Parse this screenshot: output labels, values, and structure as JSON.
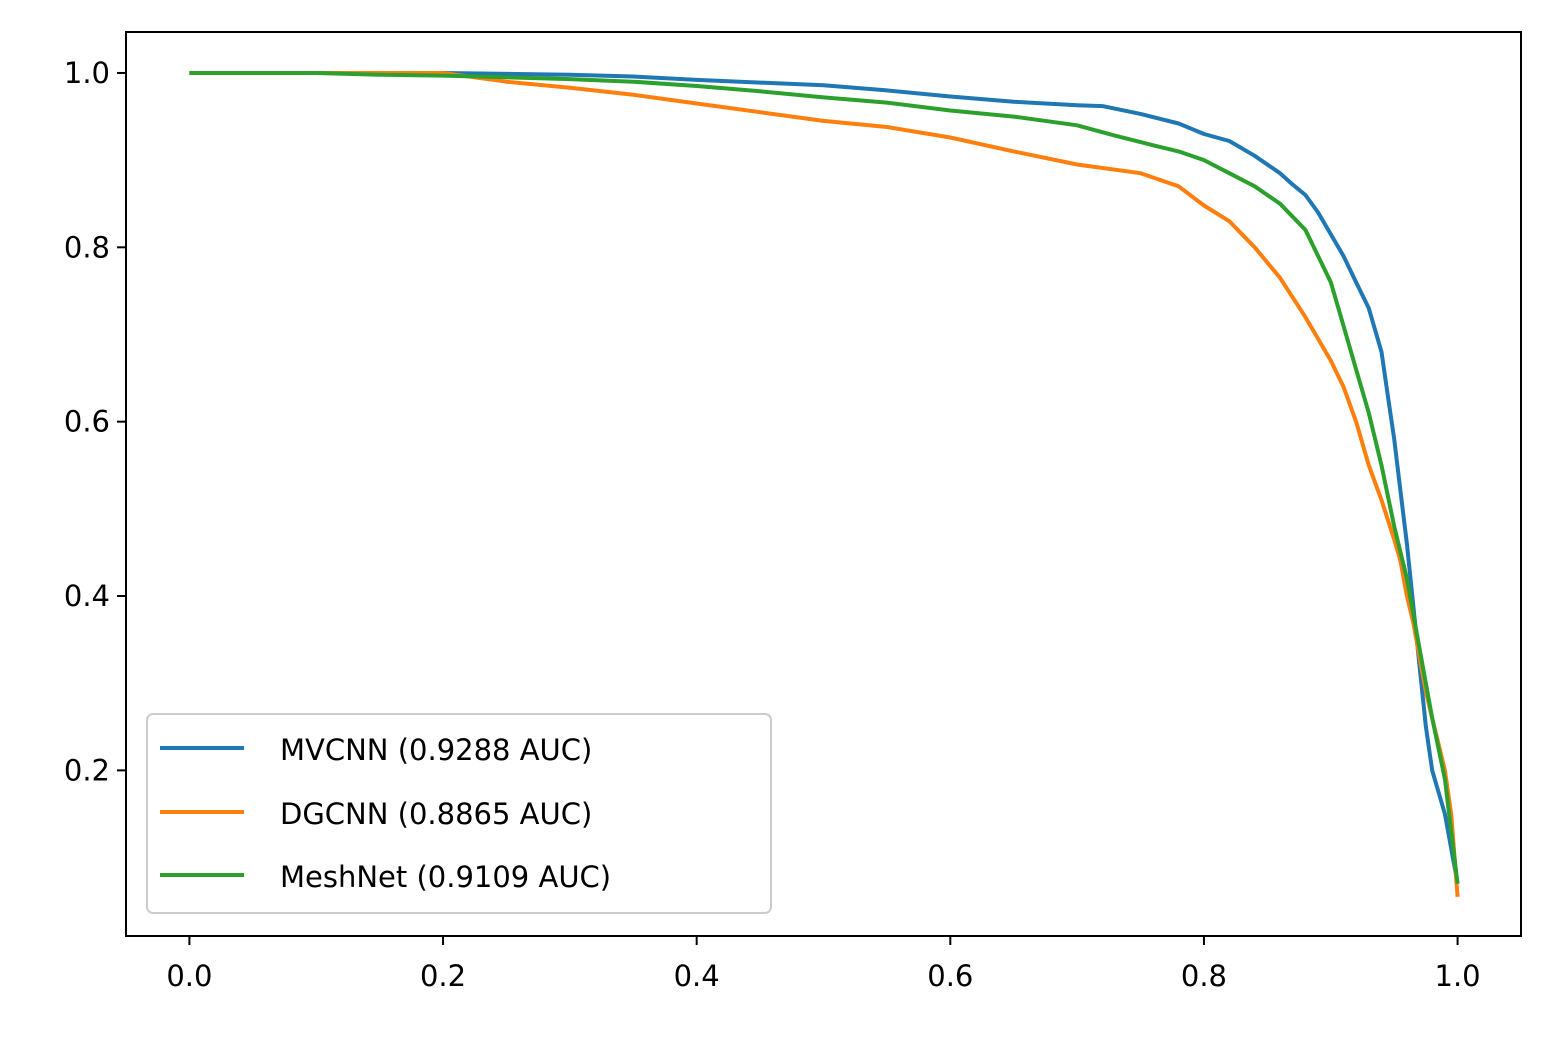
{
  "chart_data": {
    "type": "line",
    "title": "",
    "xlabel": "",
    "ylabel": "",
    "xlim": [
      -0.05,
      1.05
    ],
    "ylim": [
      0.01,
      1.047
    ],
    "grid": false,
    "legend_position": "lower-left",
    "x_ticks": [
      0.0,
      0.2,
      0.4,
      0.6,
      0.8,
      1.0
    ],
    "y_ticks": [
      0.2,
      0.4,
      0.6,
      0.8,
      1.0
    ],
    "x_tick_labels": [
      "0.0",
      "0.2",
      "0.4",
      "0.6",
      "0.8",
      "1.0"
    ],
    "y_tick_labels": [
      "0.2",
      "0.4",
      "0.6",
      "0.8",
      "1.0"
    ],
    "series": [
      {
        "name": "MVCNN (0.9288 AUC)",
        "color": "#1f77b4",
        "points": [
          [
            0.0,
            1.0
          ],
          [
            0.1,
            1.0
          ],
          [
            0.2,
            1.0
          ],
          [
            0.3,
            0.998
          ],
          [
            0.35,
            0.996
          ],
          [
            0.4,
            0.992
          ],
          [
            0.45,
            0.989
          ],
          [
            0.5,
            0.986
          ],
          [
            0.55,
            0.98
          ],
          [
            0.6,
            0.973
          ],
          [
            0.65,
            0.967
          ],
          [
            0.7,
            0.963
          ],
          [
            0.72,
            0.962
          ],
          [
            0.75,
            0.953
          ],
          [
            0.78,
            0.942
          ],
          [
            0.8,
            0.93
          ],
          [
            0.82,
            0.922
          ],
          [
            0.84,
            0.905
          ],
          [
            0.86,
            0.885
          ],
          [
            0.87,
            0.872
          ],
          [
            0.88,
            0.86
          ],
          [
            0.89,
            0.84
          ],
          [
            0.9,
            0.815
          ],
          [
            0.91,
            0.79
          ],
          [
            0.92,
            0.76
          ],
          [
            0.93,
            0.73
          ],
          [
            0.94,
            0.68
          ],
          [
            0.945,
            0.63
          ],
          [
            0.95,
            0.58
          ],
          [
            0.955,
            0.52
          ],
          [
            0.96,
            0.46
          ],
          [
            0.965,
            0.39
          ],
          [
            0.97,
            0.32
          ],
          [
            0.975,
            0.25
          ],
          [
            0.98,
            0.2
          ],
          [
            0.99,
            0.15
          ],
          [
            1.0,
            0.07
          ]
        ]
      },
      {
        "name": "DGCNN (0.8865 AUC)",
        "color": "#ff7f0e",
        "points": [
          [
            0.0,
            1.0
          ],
          [
            0.2,
            1.0
          ],
          [
            0.25,
            0.99
          ],
          [
            0.3,
            0.983
          ],
          [
            0.35,
            0.975
          ],
          [
            0.4,
            0.965
          ],
          [
            0.45,
            0.955
          ],
          [
            0.5,
            0.945
          ],
          [
            0.55,
            0.938
          ],
          [
            0.6,
            0.926
          ],
          [
            0.65,
            0.91
          ],
          [
            0.7,
            0.895
          ],
          [
            0.75,
            0.885
          ],
          [
            0.78,
            0.87
          ],
          [
            0.8,
            0.848
          ],
          [
            0.82,
            0.83
          ],
          [
            0.84,
            0.8
          ],
          [
            0.86,
            0.765
          ],
          [
            0.88,
            0.72
          ],
          [
            0.9,
            0.67
          ],
          [
            0.91,
            0.64
          ],
          [
            0.92,
            0.6
          ],
          [
            0.93,
            0.55
          ],
          [
            0.94,
            0.51
          ],
          [
            0.95,
            0.465
          ],
          [
            0.955,
            0.44
          ],
          [
            0.96,
            0.4
          ],
          [
            0.965,
            0.37
          ],
          [
            0.97,
            0.33
          ],
          [
            0.975,
            0.29
          ],
          [
            0.98,
            0.26
          ],
          [
            0.985,
            0.23
          ],
          [
            0.99,
            0.2
          ],
          [
            0.995,
            0.15
          ],
          [
            1.0,
            0.055
          ]
        ]
      },
      {
        "name": "MeshNet (0.9109 AUC)",
        "color": "#2ca02c",
        "points": [
          [
            0.0,
            1.0
          ],
          [
            0.1,
            1.0
          ],
          [
            0.15,
            0.998
          ],
          [
            0.2,
            0.997
          ],
          [
            0.25,
            0.995
          ],
          [
            0.3,
            0.993
          ],
          [
            0.35,
            0.99
          ],
          [
            0.4,
            0.985
          ],
          [
            0.45,
            0.979
          ],
          [
            0.5,
            0.972
          ],
          [
            0.55,
            0.966
          ],
          [
            0.6,
            0.957
          ],
          [
            0.65,
            0.95
          ],
          [
            0.7,
            0.94
          ],
          [
            0.73,
            0.928
          ],
          [
            0.76,
            0.917
          ],
          [
            0.78,
            0.91
          ],
          [
            0.8,
            0.9
          ],
          [
            0.82,
            0.885
          ],
          [
            0.84,
            0.87
          ],
          [
            0.86,
            0.85
          ],
          [
            0.88,
            0.82
          ],
          [
            0.89,
            0.79
          ],
          [
            0.9,
            0.76
          ],
          [
            0.91,
            0.71
          ],
          [
            0.92,
            0.66
          ],
          [
            0.93,
            0.61
          ],
          [
            0.94,
            0.55
          ],
          [
            0.95,
            0.48
          ],
          [
            0.96,
            0.42
          ],
          [
            0.97,
            0.34
          ],
          [
            0.98,
            0.26
          ],
          [
            0.99,
            0.19
          ],
          [
            1.0,
            0.07
          ]
        ]
      }
    ]
  }
}
